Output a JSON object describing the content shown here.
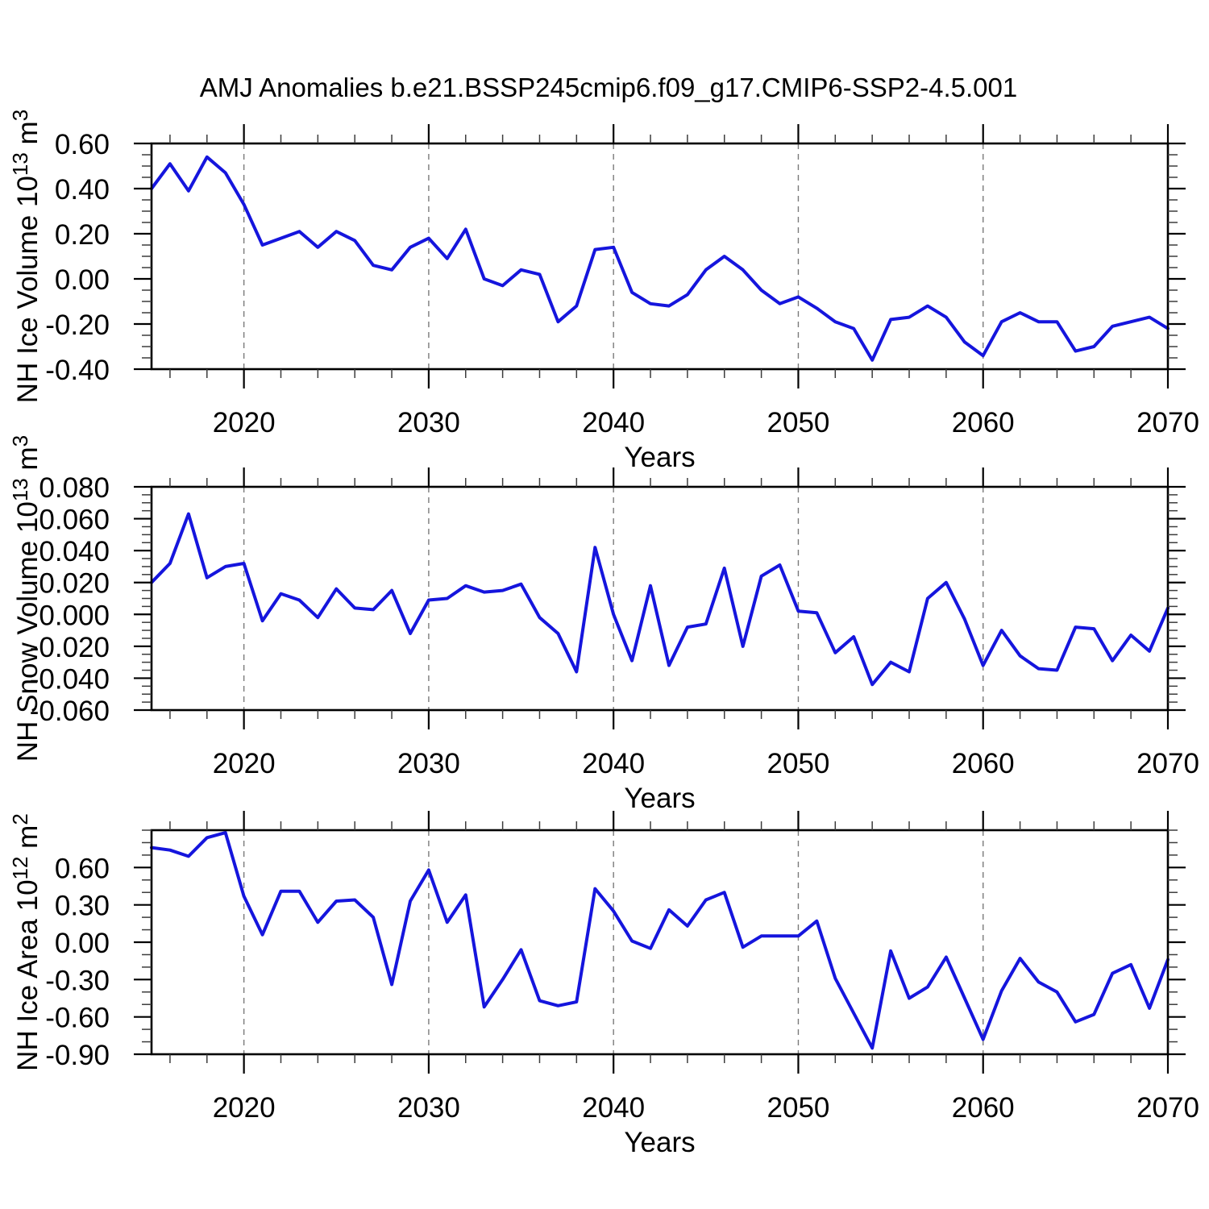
{
  "title": "AMJ Anomalies b.e21.BSSP245cmip6.f09_g17.CMIP6-SSP2-4.5.001",
  "years": [
    2015,
    2016,
    2017,
    2018,
    2019,
    2020,
    2021,
    2022,
    2023,
    2024,
    2025,
    2026,
    2027,
    2028,
    2029,
    2030,
    2031,
    2032,
    2033,
    2034,
    2035,
    2036,
    2037,
    2038,
    2039,
    2040,
    2041,
    2042,
    2043,
    2044,
    2045,
    2046,
    2047,
    2048,
    2049,
    2050,
    2051,
    2052,
    2053,
    2054,
    2055,
    2056,
    2057,
    2058,
    2059,
    2060,
    2061,
    2062,
    2063,
    2064,
    2065,
    2066,
    2067,
    2068,
    2069,
    2070
  ],
  "chart_data": [
    {
      "type": "line",
      "name": "chart-nh-ice-volume",
      "series_color": "#1515dd",
      "xlabel": "Years",
      "ylabel_parts": [
        {
          "t": "NH Ice Volume 10"
        },
        {
          "t": "13",
          "sup": true
        },
        {
          "t": " m"
        },
        {
          "t": "3",
          "sup": true
        }
      ],
      "xlim": [
        2015,
        2070
      ],
      "ylim": [
        -0.4,
        0.6
      ],
      "xticks_major": [
        2020,
        2030,
        2040,
        2050,
        2060,
        2070
      ],
      "xtick_labels": [
        "2020",
        "2030",
        "2040",
        "2050",
        "2060",
        "2070"
      ],
      "xminor_step": 2,
      "gridlines_x": [
        2020,
        2030,
        2040,
        2050,
        2060
      ],
      "yticks": [
        {
          "v": 0.6,
          "label": "0.60"
        },
        {
          "v": 0.4,
          "label": "0.40"
        },
        {
          "v": 0.2,
          "label": "0.20"
        },
        {
          "v": 0.0,
          "label": "0.00"
        },
        {
          "v": -0.2,
          "label": "-0.20"
        },
        {
          "v": -0.4,
          "label": "-0.40"
        }
      ],
      "yminor_step": 0.05,
      "values": [
        0.4,
        0.51,
        0.39,
        0.54,
        0.47,
        0.33,
        0.15,
        0.18,
        0.21,
        0.14,
        0.21,
        0.17,
        0.06,
        0.04,
        0.14,
        0.18,
        0.09,
        0.22,
        0.0,
        -0.03,
        0.04,
        0.02,
        -0.19,
        -0.12,
        0.13,
        0.14,
        -0.06,
        -0.11,
        -0.12,
        -0.07,
        0.04,
        0.1,
        0.04,
        -0.05,
        -0.11,
        -0.08,
        -0.13,
        -0.19,
        -0.22,
        -0.36,
        -0.18,
        -0.17,
        -0.12,
        -0.17,
        -0.28,
        -0.34,
        -0.19,
        -0.15,
        -0.19,
        -0.19,
        -0.32,
        -0.3,
        -0.21,
        -0.19,
        -0.17,
        -0.22
      ]
    },
    {
      "type": "line",
      "name": "chart-nh-snow-volume",
      "series_color": "#1515dd",
      "xlabel": "Years",
      "ylabel_parts": [
        {
          "t": "NH Snow Volume 10"
        },
        {
          "t": "13",
          "sup": true
        },
        {
          "t": " m"
        },
        {
          "t": "3",
          "sup": true
        }
      ],
      "xlim": [
        2015,
        2070
      ],
      "ylim": [
        -0.06,
        0.08
      ],
      "xticks_major": [
        2020,
        2030,
        2040,
        2050,
        2060,
        2070
      ],
      "xtick_labels": [
        "2020",
        "2030",
        "2040",
        "2050",
        "2060",
        "2070"
      ],
      "xminor_step": 2,
      "gridlines_x": [
        2020,
        2030,
        2040,
        2050,
        2060
      ],
      "yticks": [
        {
          "v": 0.08,
          "label": "0.080"
        },
        {
          "v": 0.06,
          "label": "0.060"
        },
        {
          "v": 0.04,
          "label": "0.040"
        },
        {
          "v": 0.02,
          "label": "0.020"
        },
        {
          "v": 0.0,
          "label": "0.000"
        },
        {
          "v": -0.02,
          "label": "-0.020"
        },
        {
          "v": -0.04,
          "label": "-0.040"
        },
        {
          "v": -0.06,
          "label": "-0.060"
        }
      ],
      "yminor_step": 0.005,
      "values": [
        0.02,
        0.032,
        0.063,
        0.023,
        0.03,
        0.032,
        -0.004,
        0.013,
        0.009,
        -0.002,
        0.016,
        0.004,
        0.003,
        0.015,
        -0.012,
        0.009,
        0.01,
        0.018,
        0.014,
        0.015,
        0.019,
        -0.002,
        -0.012,
        -0.036,
        0.042,
        0.0,
        -0.029,
        0.018,
        -0.032,
        -0.008,
        -0.006,
        0.029,
        -0.02,
        0.024,
        0.031,
        0.002,
        0.001,
        -0.024,
        -0.014,
        -0.044,
        -0.03,
        -0.036,
        0.01,
        0.02,
        -0.003,
        -0.032,
        -0.01,
        -0.026,
        -0.034,
        -0.035,
        -0.008,
        -0.009,
        -0.029,
        -0.013,
        -0.023,
        0.004
      ]
    },
    {
      "type": "line",
      "name": "chart-nh-ice-area",
      "series_color": "#1515dd",
      "xlabel": "Years",
      "ylabel_parts": [
        {
          "t": "NH Ice Area 10"
        },
        {
          "t": "12",
          "sup": true
        },
        {
          "t": " m"
        },
        {
          "t": "2",
          "sup": true
        }
      ],
      "xlim": [
        2015,
        2070
      ],
      "ylim": [
        -0.9,
        0.9
      ],
      "xticks_major": [
        2020,
        2030,
        2040,
        2050,
        2060,
        2070
      ],
      "xtick_labels": [
        "2020",
        "2030",
        "2040",
        "2050",
        "2060",
        "2070"
      ],
      "xminor_step": 2,
      "gridlines_x": [
        2020,
        2030,
        2040,
        2050,
        2060
      ],
      "yticks": [
        {
          "v": 0.6,
          "label": "0.60"
        },
        {
          "v": 0.3,
          "label": "0.30"
        },
        {
          "v": 0.0,
          "label": "0.00"
        },
        {
          "v": -0.3,
          "label": "-0.30"
        },
        {
          "v": -0.6,
          "label": "-0.60"
        },
        {
          "v": -0.9,
          "label": "-0.90"
        }
      ],
      "yminor_step": 0.1,
      "values": [
        0.76,
        0.74,
        0.69,
        0.84,
        0.88,
        0.37,
        0.06,
        0.41,
        0.41,
        0.16,
        0.33,
        0.34,
        0.2,
        -0.34,
        0.33,
        0.58,
        0.16,
        0.38,
        -0.52,
        -0.3,
        -0.06,
        -0.47,
        -0.51,
        -0.48,
        0.43,
        0.25,
        0.01,
        -0.05,
        0.26,
        0.13,
        0.34,
        0.4,
        -0.04,
        0.05,
        0.05,
        0.05,
        0.17,
        -0.29,
        -0.57,
        -0.85,
        -0.07,
        -0.45,
        -0.36,
        -0.12,
        -0.45,
        -0.78,
        -0.39,
        -0.13,
        -0.32,
        -0.4,
        -0.64,
        -0.58,
        -0.25,
        -0.18,
        -0.53,
        -0.14
      ]
    }
  ]
}
